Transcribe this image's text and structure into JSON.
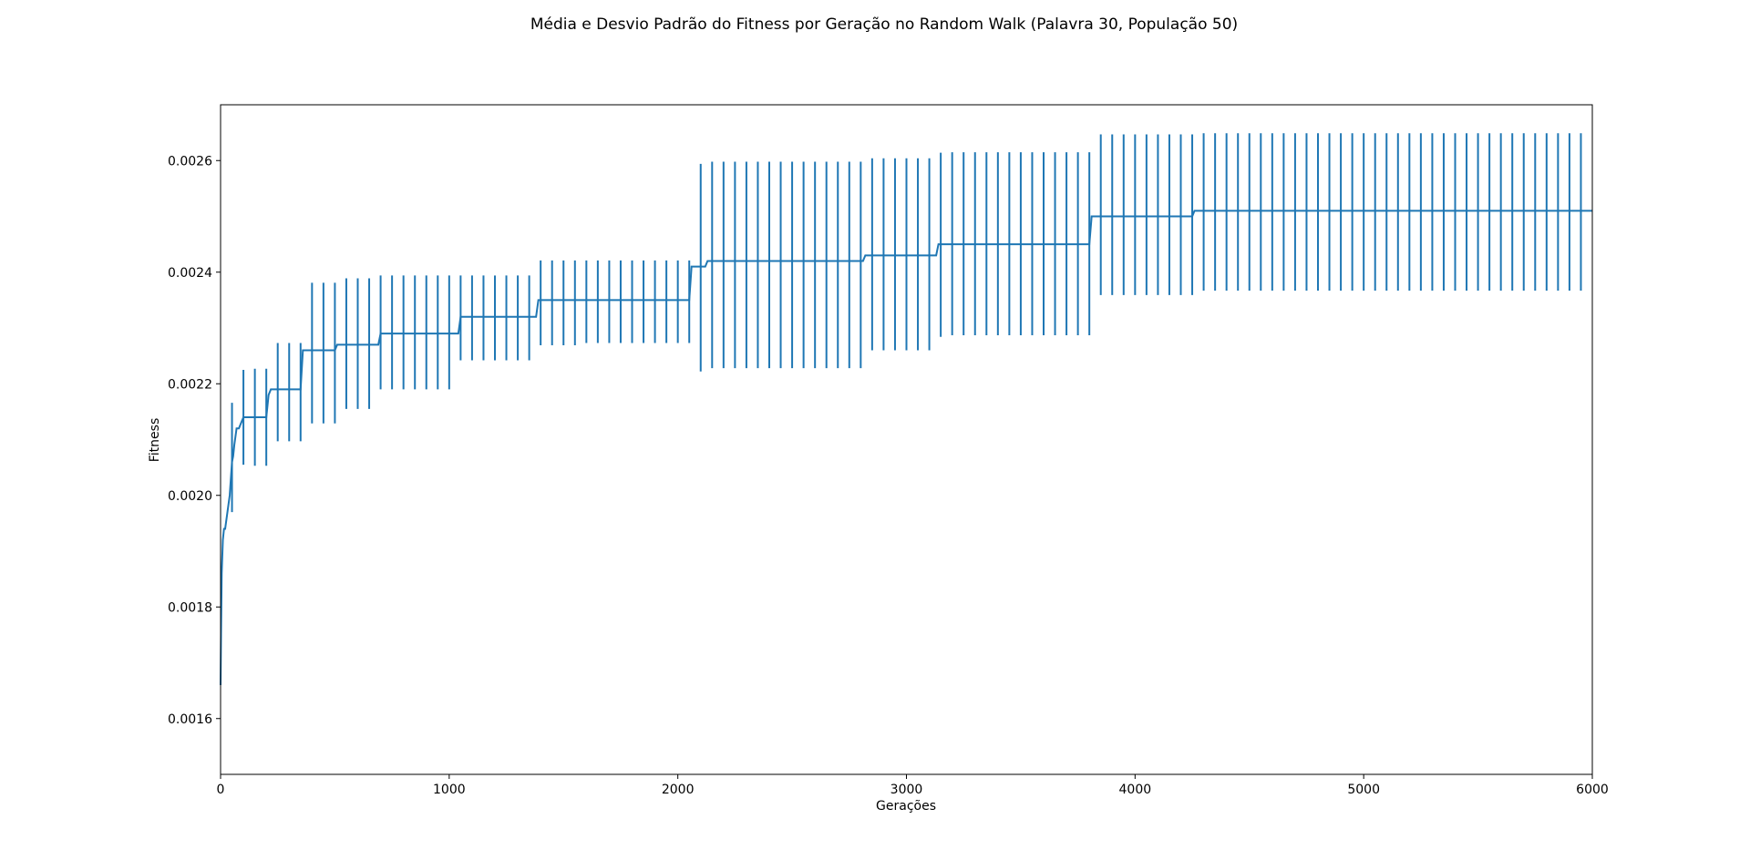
{
  "chart_data": {
    "type": "line",
    "title": "Média e Desvio Padrão do Fitness por Geração no Random Walk (Palavra 30, População 50)",
    "xlabel": "Gerações",
    "ylabel": "Fitness",
    "xlim": [
      0,
      6000
    ],
    "ylim": [
      0.0015,
      0.0027
    ],
    "x_ticks": [
      0,
      1000,
      2000,
      3000,
      4000,
      5000,
      6000
    ],
    "x_tick_labels": [
      "0",
      "1000",
      "2000",
      "3000",
      "4000",
      "5000",
      "6000"
    ],
    "y_ticks": [
      0.0016,
      0.0018,
      0.002,
      0.0022,
      0.0024,
      0.0026
    ],
    "y_tick_labels": [
      "0.0016",
      "0.0018",
      "0.0020",
      "0.0022",
      "0.0024",
      "0.0026"
    ],
    "grid": false,
    "color": "#1f77b4",
    "series": [
      {
        "kind": "mean",
        "x": [
          0,
          2,
          5,
          10,
          15,
          20,
          30,
          40,
          50,
          55,
          60,
          70,
          80,
          100,
          200,
          210,
          220,
          350,
          360,
          500,
          510,
          690,
          700,
          1040,
          1050,
          1380,
          1390,
          1560,
          1570,
          2050,
          2060,
          2120,
          2130,
          2810,
          2820,
          3130,
          3140,
          3160,
          3170,
          3800,
          3810,
          4250,
          4260,
          6000
        ],
        "y": [
          0.00166,
          0.00175,
          0.00186,
          0.00192,
          0.00194,
          0.00194,
          0.00197,
          0.002,
          0.00206,
          0.00207,
          0.00209,
          0.00212,
          0.00212,
          0.00214,
          0.00214,
          0.00218,
          0.00219,
          0.00219,
          0.00226,
          0.00226,
          0.00227,
          0.00227,
          0.00229,
          0.00229,
          0.00232,
          0.00232,
          0.00235,
          0.00235,
          0.00235,
          0.00235,
          0.00241,
          0.00241,
          0.00242,
          0.00242,
          0.00243,
          0.00243,
          0.00245,
          0.00245,
          0.00245,
          0.00245,
          0.0025,
          0.0025,
          0.00251,
          0.00251
        ]
      },
      {
        "kind": "errorbars",
        "x": [
          50,
          100,
          150,
          200,
          250,
          300,
          350,
          400,
          450,
          500,
          550,
          600,
          650,
          700,
          750,
          800,
          850,
          900,
          950,
          1000,
          1050,
          1100,
          1150,
          1200,
          1250,
          1300,
          1350,
          1400,
          1450,
          1500,
          1550,
          1600,
          1650,
          1700,
          1750,
          1800,
          1850,
          1900,
          1950,
          2000,
          2050,
          2100,
          2150,
          2200,
          2250,
          2300,
          2350,
          2400,
          2450,
          2500,
          2550,
          2600,
          2650,
          2700,
          2750,
          2800,
          2850,
          2900,
          2950,
          3000,
          3050,
          3100,
          3150,
          3200,
          3250,
          3300,
          3350,
          3400,
          3450,
          3500,
          3550,
          3600,
          3650,
          3700,
          3750,
          3800,
          3850,
          3900,
          3950,
          4000,
          4050,
          4100,
          4150,
          4200,
          4250,
          4300,
          4350,
          4400,
          4450,
          4500,
          4550,
          4600,
          4650,
          4700,
          4750,
          4800,
          4850,
          4900,
          4950,
          5000,
          5050,
          5100,
          5150,
          5200,
          5250,
          5300,
          5350,
          5400,
          5450,
          5500,
          5550,
          5600,
          5650,
          5700,
          5750,
          5800,
          5850,
          5900,
          5950
        ],
        "mean": [
          0.002068,
          0.00214,
          0.00214,
          0.00214,
          0.002185,
          0.002185,
          0.002185,
          0.002255,
          0.002255,
          0.002255,
          0.002272,
          0.002272,
          0.002272,
          0.002292,
          0.002292,
          0.002292,
          0.002292,
          0.002292,
          0.002292,
          0.002292,
          0.002318,
          0.002318,
          0.002318,
          0.002318,
          0.002318,
          0.002318,
          0.002318,
          0.002345,
          0.002345,
          0.002345,
          0.002345,
          0.002347,
          0.002347,
          0.002347,
          0.002347,
          0.002347,
          0.002347,
          0.002347,
          0.002347,
          0.002347,
          0.002347,
          0.002408,
          0.002413,
          0.002413,
          0.002413,
          0.002413,
          0.002413,
          0.002413,
          0.002413,
          0.002413,
          0.002413,
          0.002413,
          0.002413,
          0.002413,
          0.002413,
          0.002413,
          0.002432,
          0.002432,
          0.002432,
          0.002432,
          0.002432,
          0.002432,
          0.002449,
          0.002451,
          0.002451,
          0.002451,
          0.002451,
          0.002451,
          0.002451,
          0.002451,
          0.002451,
          0.002451,
          0.002451,
          0.002451,
          0.002451,
          0.002451,
          0.002503,
          0.002503,
          0.002503,
          0.002503,
          0.002503,
          0.002503,
          0.002503,
          0.002503,
          0.002503,
          0.002508,
          0.002508,
          0.002508,
          0.002508,
          0.002508,
          0.002508,
          0.002508,
          0.002508,
          0.002508,
          0.002508,
          0.002508,
          0.002508,
          0.002508,
          0.002508,
          0.002508,
          0.002508,
          0.002508,
          0.002508,
          0.002508,
          0.002508,
          0.002508,
          0.002508,
          0.002508,
          0.002508,
          0.002508,
          0.002508,
          0.002508,
          0.002508,
          0.002508,
          0.002508,
          0.002508,
          0.002508,
          0.002508,
          0.002508
        ],
        "std": [
          9.8e-05,
          8.5e-05,
          8.7e-05,
          8.7e-05,
          8.8e-05,
          8.8e-05,
          8.8e-05,
          0.000126,
          0.000126,
          0.000126,
          0.000117,
          0.000117,
          0.000117,
          0.000102,
          0.000102,
          0.000102,
          0.000102,
          0.000102,
          0.000102,
          0.000102,
          7.6e-05,
          7.6e-05,
          7.6e-05,
          7.6e-05,
          7.6e-05,
          7.6e-05,
          7.6e-05,
          7.6e-05,
          7.6e-05,
          7.6e-05,
          7.6e-05,
          7.4e-05,
          7.4e-05,
          7.4e-05,
          7.4e-05,
          7.4e-05,
          7.4e-05,
          7.4e-05,
          7.4e-05,
          7.4e-05,
          7.4e-05,
          0.000186,
          0.000185,
          0.000185,
          0.000185,
          0.000185,
          0.000185,
          0.000185,
          0.000185,
          0.000185,
          0.000185,
          0.000185,
          0.000185,
          0.000185,
          0.000185,
          0.000185,
          0.000172,
          0.000172,
          0.000172,
          0.000172,
          0.000172,
          0.000172,
          0.000165,
          0.000164,
          0.000164,
          0.000164,
          0.000164,
          0.000164,
          0.000164,
          0.000164,
          0.000164,
          0.000164,
          0.000164,
          0.000164,
          0.000164,
          0.000164,
          0.000144,
          0.000144,
          0.000144,
          0.000144,
          0.000144,
          0.000144,
          0.000144,
          0.000144,
          0.000144,
          0.000141,
          0.000141,
          0.000141,
          0.000141,
          0.000141,
          0.000141,
          0.000141,
          0.000141,
          0.000141,
          0.000141,
          0.000141,
          0.000141,
          0.000141,
          0.000141,
          0.000141,
          0.000141,
          0.000141,
          0.000141,
          0.000141,
          0.000141,
          0.000141,
          0.000141,
          0.000141,
          0.000141,
          0.000141,
          0.000141,
          0.000141,
          0.000141,
          0.000141,
          0.000141,
          0.000141,
          0.000141,
          0.000141,
          0.000141
        ]
      }
    ]
  }
}
